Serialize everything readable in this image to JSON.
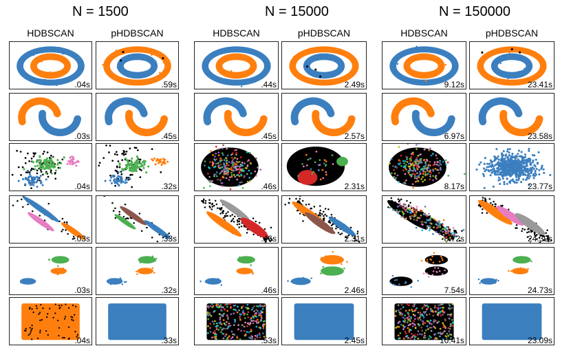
{
  "colors": {
    "blue": "#3b7fbf",
    "orange": "#ff7f0e",
    "green": "#4caf50",
    "pink": "#e77dc2",
    "brown": "#8c564b",
    "red": "#d62728",
    "gray": "#9a9a9a",
    "purple": "#9467bd",
    "noise": "#000000"
  },
  "chart_data": {
    "type": "scatter",
    "groups": [
      {
        "n_label": "N = 1500",
        "columns": [
          {
            "title": "HDBSCAN",
            "times": [
              ".04s",
              ".03s",
              ".04s",
              ".03s",
              ".03s",
              ".04s"
            ],
            "styles": [
              "rings-bob",
              "moons-ob",
              "blobs-gbp",
              "aniso-bpo",
              "varied-bgo",
              "uniform-o"
            ]
          },
          {
            "title": "pHDBSCAN",
            "times": [
              ".59s",
              ".45s",
              ".32s",
              ".33s",
              ".32s",
              ".33s"
            ],
            "styles": [
              "rings-obo",
              "moons-bo",
              "blobs-gbo",
              "aniso-bgbr",
              "varied-bgo",
              "uniform-b"
            ]
          }
        ]
      },
      {
        "n_label": "N = 15000",
        "columns": [
          {
            "title": "HDBSCAN",
            "times": [
              ".44s",
              ".45s",
              ".46s",
              ".46s",
              ".46s",
              ".53s"
            ],
            "styles": [
              "rings-bob",
              "moons-bo",
              "blobs-multi",
              "aniso-gor",
              "varied-bgo",
              "uniform-multi"
            ]
          },
          {
            "title": "pHDBSCAN",
            "times": [
              "2.49s",
              "2.57s",
              "2.31s",
              "2.31s",
              "2.46s",
              "2.45s"
            ],
            "styles": [
              "rings-obo",
              "moons-bo",
              "blobs-rgnoise",
              "aniso-obr",
              "varied-bog",
              "uniform-b"
            ]
          }
        ]
      },
      {
        "n_label": "N = 150000",
        "columns": [
          {
            "title": "HDBSCAN",
            "times": [
              "9.12s",
              "6.97s",
              "8.17s",
              "8.72s",
              "7.54s",
              "10.41s"
            ],
            "styles": [
              "rings-bob",
              "moons-ob",
              "blobs-multi",
              "aniso-multi",
              "varied-noise",
              "uniform-multi"
            ]
          },
          {
            "title": "pHDBSCAN",
            "times": [
              "23.41s",
              "23.58s",
              "23.77s",
              "24.39s",
              "24.73s",
              "23.09s"
            ],
            "styles": [
              "rings-obo",
              "moons-bo",
              "blobs-b",
              "aniso-opg",
              "varied-bgo",
              "uniform-b"
            ]
          }
        ]
      }
    ]
  }
}
